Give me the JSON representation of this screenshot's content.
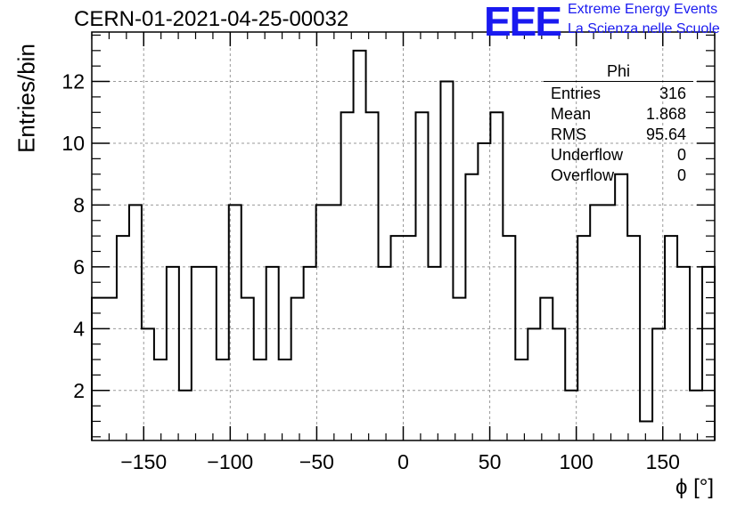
{
  "header": {
    "run_id": "CERN-01-2021-04-25-00032",
    "logo_text": "EEE",
    "brand_line1": "Extreme Energy Events",
    "brand_line2": "La Scienza nelle Scuole"
  },
  "colors": {
    "brand": "#1a1af0",
    "line": "#000000",
    "grid": "#999999"
  },
  "stats": {
    "name": "Phi",
    "rows": [
      {
        "label": "Entries",
        "value": "316"
      },
      {
        "label": "Mean",
        "value": "1.868"
      },
      {
        "label": "RMS",
        "value": "95.64"
      },
      {
        "label": "Underflow",
        "value": "0"
      },
      {
        "label": "Overflow",
        "value": "0"
      }
    ]
  },
  "chart_data": {
    "type": "histogram",
    "title": "CERN-01-2021-04-25-00032",
    "xlabel": "ϕ [°]",
    "ylabel": "Entries/bin",
    "xlim": [
      -180,
      180
    ],
    "ylim": [
      0.38,
      13.6
    ],
    "grid": true,
    "bin_width": 7.2,
    "bin_start": -180,
    "values": [
      5,
      5,
      7,
      8,
      4,
      3,
      6,
      2,
      6,
      6,
      3,
      8,
      5,
      3,
      6,
      3,
      5,
      6,
      8,
      8,
      11,
      13,
      11,
      6,
      7,
      7,
      11,
      6,
      12,
      5,
      9,
      10,
      11,
      7,
      3,
      4,
      5,
      4,
      2,
      7,
      8,
      8,
      9,
      7,
      1,
      4,
      7,
      6,
      2,
      6
    ],
    "xticks": [
      -150,
      -100,
      -50,
      0,
      50,
      100,
      150
    ],
    "xtick_labels": [
      "−150",
      "−100",
      "−50",
      "0",
      "50",
      "100",
      "150"
    ],
    "yticks": [
      2,
      4,
      6,
      8,
      10,
      12
    ],
    "ytick_labels": [
      "2",
      "4",
      "6",
      "8",
      "10",
      "12"
    ]
  }
}
